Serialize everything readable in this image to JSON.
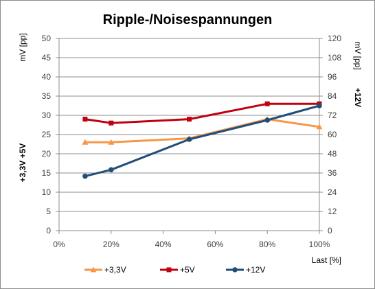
{
  "chart_data": {
    "type": "line",
    "title": "Ripple-/Noisespannungen",
    "xlabel": "Last [%]",
    "x": [
      10,
      20,
      50,
      80,
      100
    ],
    "xlim": [
      0,
      100
    ],
    "xticks": [
      "0%",
      "20%",
      "40%",
      "60%",
      "80%",
      "100%"
    ],
    "ylabel_left": "+3,3V  +5V     mV [pp]",
    "ylabel_left_parts": [
      "+3,3V  +5V",
      "mV [pp]"
    ],
    "ylim_left": [
      0,
      50
    ],
    "yticks_left": [
      "0",
      "5",
      "10",
      "15",
      "20",
      "25",
      "30",
      "35",
      "40",
      "45",
      "50"
    ],
    "ylabel_right_parts": [
      "+12V",
      "mV [pp]"
    ],
    "ylim_right": [
      0,
      120
    ],
    "yticks_right": [
      "0",
      "12",
      "24",
      "36",
      "48",
      "60",
      "72",
      "84",
      "96",
      "108",
      "120"
    ],
    "grid": "horizontal",
    "legend_position": "bottom",
    "series": [
      {
        "name": "+3,3V",
        "axis": "left",
        "color": "#f79646",
        "marker": "triangle",
        "values": [
          23,
          23,
          24,
          29,
          27
        ]
      },
      {
        "name": "+5V",
        "axis": "left",
        "color": "#c0000f",
        "marker": "square",
        "values": [
          29,
          28,
          29,
          33,
          33
        ]
      },
      {
        "name": "+12V",
        "axis": "right",
        "color": "#1f4e79",
        "marker": "circle",
        "values": [
          34,
          38,
          57,
          69,
          78
        ]
      }
    ]
  }
}
